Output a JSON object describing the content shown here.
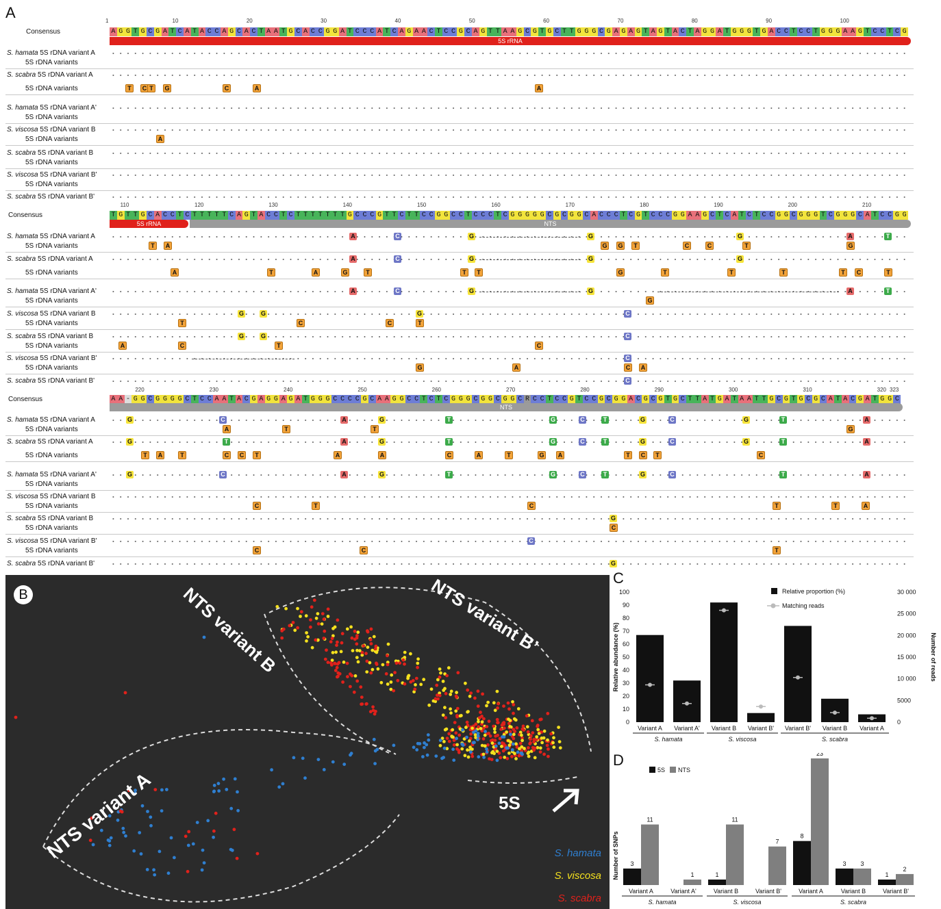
{
  "panels": {
    "a": "A",
    "b": "B",
    "c": "C",
    "d": "D"
  },
  "alignment": {
    "consensus_label": "Consensus",
    "variants_label": "5S rDNA  variants",
    "block1": {
      "ruler": [
        "1",
        "10",
        "20",
        "30",
        "40",
        "50",
        "60",
        "70",
        "80",
        "90",
        "100"
      ],
      "sequence": "AGGTGCGATCATACCAGCACTAATGCACCGGATCCCATCAGAACTCCGCAGTTAAGCGTGCTTGGGCGAGAGTAGTACTAGGATGGGTGACCTCCTGGGAAGTCCTCG",
      "feature": "5S rRNA",
      "rows": [
        {
          "species": "S. hamata",
          "rest": " 5S rDNA variant A"
        },
        {
          "species": "S. scabra",
          "rest": " 5S rDNA variant A"
        },
        {
          "species": "S. hamata",
          "rest": " 5S rDNA variant A'"
        },
        {
          "species": "S. viscosa",
          "rest": " 5S rDNA variant B"
        },
        {
          "species": "S. scabra",
          "rest": " 5S rDNA variant B"
        },
        {
          "species": "S. viscosa",
          "rest": " 5S rDNA variant B'"
        },
        {
          "species": "S. scabra",
          "rest": " 5S rDNA variant B'"
        }
      ]
    },
    "block2": {
      "ruler": [
        "110",
        "120",
        "130",
        "140",
        "150",
        "160",
        "170",
        "180",
        "190",
        "200",
        "210"
      ],
      "sequence": "TGTTGCACCTCTTTTTCAGTACCTCTTTTTTTGCCCGTTCTTCCGGCCTCCCTCGGGGGCGCGGCACCCTCGTCCCGGAAGCTCATCTCCGGCGGGTCGGGCATCCGG",
      "feature_red": "5S rRNA",
      "feature_gray": "NTS",
      "rows": [
        {
          "species": "S. hamata",
          "rest": " 5S rDNA variant A"
        },
        {
          "species": "S. scabra",
          "rest": " 5S rDNA variant A"
        },
        {
          "species": "S. hamata",
          "rest": " 5S rDNA variant A'"
        },
        {
          "species": "S. viscosa",
          "rest": " 5S rDNA variant B"
        },
        {
          "species": "S. scabra",
          "rest": " 5S rDNA variant B"
        },
        {
          "species": "S. viscosa",
          "rest": " 5S rDNA variant B'"
        },
        {
          "species": "S. scabra",
          "rest": " 5S rDNA variant B'"
        }
      ]
    },
    "block3": {
      "ruler": [
        "220",
        "230",
        "240",
        "250",
        "260",
        "270",
        "280",
        "290",
        "300",
        "310",
        "320",
        "323"
      ],
      "sequence": "AA-GGCGGGGCTCCAATACGAGGAGATGGGCCCCGCAAGGCCTCTCGGGCGGCGGCRCCTCCGTCCGCGGACGCGTGCTTATGATAATTGCGTGCGCATACGATGGC",
      "feature": "NTS",
      "rows": [
        {
          "species": "S. hamata",
          "rest": " 5S rDNA variant A"
        },
        {
          "species": "S. scabra",
          "rest": " 5S rDNA variant A"
        },
        {
          "species": "S. hamata",
          "rest": " 5S rDNA variant A'"
        },
        {
          "species": "S. viscosa",
          "rest": " 5S rDNA variant B"
        },
        {
          "species": "S. scabra",
          "rest": " 5S rDNA variant B"
        },
        {
          "species": "S. viscosa",
          "rest": " 5S rDNA variant B'"
        },
        {
          "species": "S. scabra",
          "rest": " 5S rDNA variant B'"
        }
      ]
    }
  },
  "graph": {
    "labels": {
      "nts_a": "NTS variant A",
      "nts_b": "NTS variant B",
      "nts_bp": "NTS variant B’",
      "five_s": "5S"
    },
    "legend": [
      {
        "name": "S. hamata",
        "color": "#2f7fd0"
      },
      {
        "name": "S. viscosa",
        "color": "#f4e01e"
      },
      {
        "name": "S. scabra",
        "color": "#e0211b"
      }
    ]
  },
  "chart_data": [
    {
      "type": "bar",
      "ylabel": "Relative abundance (%)",
      "y2label": "Number of reads",
      "ylim": [
        0,
        100
      ],
      "y2lim": [
        0,
        30000
      ],
      "yticks": [
        "0",
        "10",
        "20",
        "30",
        "40",
        "50",
        "60",
        "70",
        "80",
        "90",
        "100"
      ],
      "y2ticks": [
        "0",
        "5000",
        "10 000",
        "15 000",
        "20 000",
        "25 000",
        "30 000"
      ],
      "categories": [
        "Variant A",
        "Variant A'",
        "Variant B",
        "Variant B'",
        "Variant B'",
        "Variant B",
        "Variant A"
      ],
      "groups": [
        {
          "name": "S. hamata",
          "count": 2
        },
        {
          "name": "S. viscosa",
          "count": 2
        },
        {
          "name": "S. scabra",
          "count": 3
        }
      ],
      "series": [
        {
          "name": "Relative proportion (%)",
          "values": [
            67,
            32,
            92,
            7,
            74,
            18,
            6
          ],
          "color": "#111111"
        },
        {
          "name": "Matching reads",
          "values": [
            8600,
            4300,
            25800,
            3600,
            10300,
            2200,
            900
          ],
          "color": "#bbbbbb"
        }
      ]
    },
    {
      "type": "bar",
      "ylabel": "Number of SNPs",
      "categories": [
        "Variant A",
        "Variant A'",
        "Variant B",
        "Variant B'",
        "Variant A",
        "Variant B",
        "Variant B'"
      ],
      "groups": [
        {
          "name": "S. hamata",
          "count": 2
        },
        {
          "name": "S. viscosa",
          "count": 2
        },
        {
          "name": "S. scabra",
          "count": 3
        }
      ],
      "ylim": [
        0,
        23
      ],
      "series": [
        {
          "name": "5S",
          "values": [
            3,
            0,
            1,
            0,
            8,
            3,
            1
          ],
          "labels": [
            "3",
            "",
            "1",
            "",
            "8",
            "3",
            "1"
          ],
          "color": "#111111"
        },
        {
          "name": "NTS",
          "values": [
            11,
            1,
            11,
            7,
            23,
            3,
            2
          ],
          "labels": [
            "11",
            "1",
            "11",
            "7",
            "23",
            "3",
            "2"
          ],
          "color": "#7f7f7f"
        }
      ]
    }
  ]
}
